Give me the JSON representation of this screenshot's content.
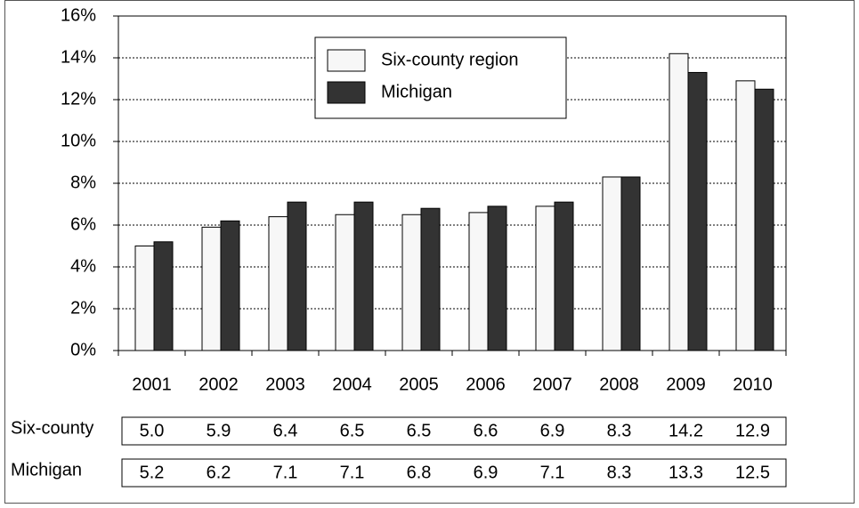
{
  "chart_data": {
    "type": "bar",
    "categories": [
      "2001",
      "2002",
      "2003",
      "2004",
      "2005",
      "2006",
      "2007",
      "2008",
      "2009",
      "2010"
    ],
    "series": [
      {
        "name": "Six-county region",
        "color": "#f7f7f7",
        "values": [
          5.0,
          5.9,
          6.4,
          6.5,
          6.5,
          6.6,
          6.9,
          8.3,
          14.2,
          12.9
        ],
        "value_labels": [
          "5.0",
          "5.9",
          "6.4",
          "6.5",
          "6.5",
          "6.6",
          "6.9",
          "8.3",
          "14.2",
          "12.9"
        ]
      },
      {
        "name": "Michigan",
        "color": "#333333",
        "values": [
          5.2,
          6.2,
          7.1,
          7.1,
          6.8,
          6.9,
          7.1,
          8.3,
          13.3,
          12.5
        ],
        "value_labels": [
          "5.2",
          "6.2",
          "7.1",
          "7.1",
          "6.8",
          "6.9",
          "7.1",
          "8.3",
          "13.3",
          "12.5"
        ]
      }
    ],
    "table_row_labels": [
      "Six-county",
      "Michigan"
    ],
    "ylim": [
      0,
      16
    ],
    "yticks": [
      {
        "value": 0,
        "label": "0%"
      },
      {
        "value": 2,
        "label": "2%"
      },
      {
        "value": 4,
        "label": "4%"
      },
      {
        "value": 6,
        "label": "6%"
      },
      {
        "value": 8,
        "label": "8%"
      },
      {
        "value": 10,
        "label": "10%"
      },
      {
        "value": 12,
        "label": "12%"
      },
      {
        "value": 14,
        "label": "14%"
      },
      {
        "value": 16,
        "label": "16%"
      }
    ],
    "grid": true,
    "legend": "top-center"
  }
}
